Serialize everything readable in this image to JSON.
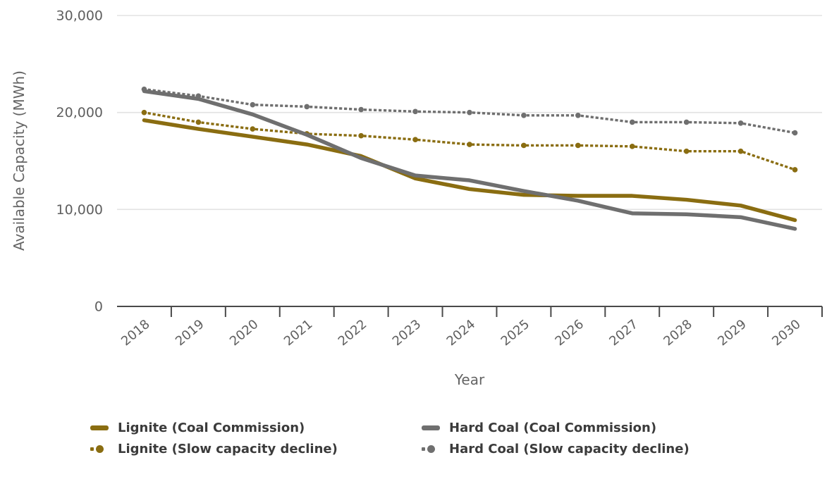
{
  "chart_data": {
    "type": "line",
    "title": "",
    "xlabel": "Year",
    "ylabel": "Available Capacity (MWh)",
    "x": [
      2018,
      2019,
      2020,
      2021,
      2022,
      2023,
      2024,
      2025,
      2026,
      2027,
      2028,
      2029,
      2030
    ],
    "ylim": [
      0,
      30000
    ],
    "yticks": [
      {
        "value": 0,
        "label": "0"
      },
      {
        "value": 10000,
        "label": "10,000"
      },
      {
        "value": 20000,
        "label": "20,000"
      },
      {
        "value": 30000,
        "label": "30,000"
      }
    ],
    "grid": "horizontal",
    "legend_position": "bottom",
    "series": [
      {
        "name": "Lignite (Coal Commission)",
        "style": "solid",
        "color": "#8a6d11",
        "values": [
          19200,
          18300,
          17500,
          16700,
          15500,
          13200,
          12100,
          11500,
          11400,
          11400,
          11000,
          10400,
          8900
        ]
      },
      {
        "name": "Hard Coal (Coal Commission)",
        "style": "solid",
        "color": "#6f6f6f",
        "values": [
          22200,
          21400,
          19800,
          17700,
          15300,
          13500,
          13000,
          11900,
          10900,
          9600,
          9500,
          9200,
          8000
        ]
      },
      {
        "name": "Lignite (Slow capacity decline)",
        "style": "dotted",
        "color": "#8a6d11",
        "values": [
          20000,
          19000,
          18300,
          17800,
          17600,
          17200,
          16700,
          16600,
          16600,
          16500,
          16000,
          16000,
          14100
        ]
      },
      {
        "name": "Hard Coal (Slow capacity decline)",
        "style": "dotted",
        "color": "#6f6f6f",
        "values": [
          22400,
          21700,
          20800,
          20600,
          20300,
          20100,
          20000,
          19700,
          19700,
          19000,
          19000,
          18900,
          17900
        ]
      }
    ],
    "colors": {
      "axis": "#4a4a4a",
      "grid": "#e2e2e2",
      "tick_label": "#5f5f5f",
      "axis_title": "#646464",
      "legend_text": "#3b3b3b"
    }
  }
}
